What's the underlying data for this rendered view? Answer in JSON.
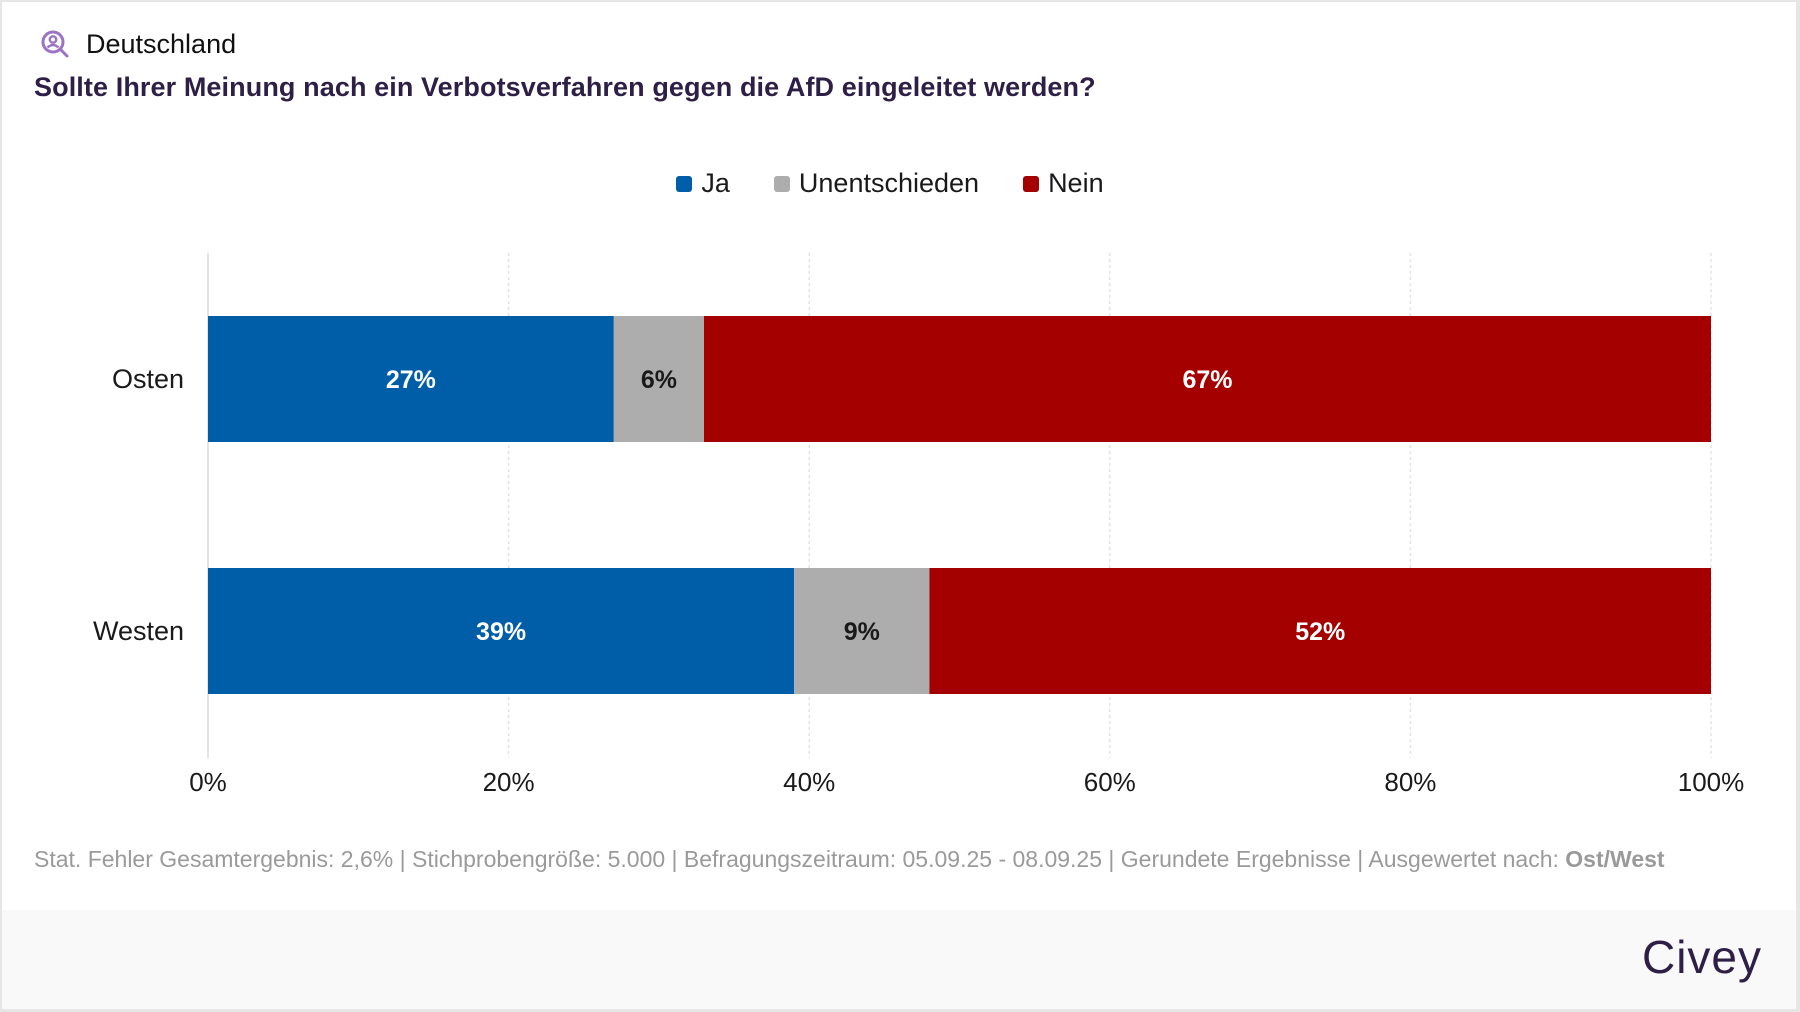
{
  "header": {
    "region_icon": "person-search-icon",
    "region_label": "Deutschland",
    "title": "Sollte Ihrer Meinung nach ein Verbotsverfahren gegen die AfD eingeleitet werden?"
  },
  "colors": {
    "ja": "#005ea8",
    "unentschieden": "#adadad",
    "nein": "#a50000",
    "title": "#2d1f45",
    "icon": "#9b72c4"
  },
  "chart_data": {
    "type": "bar",
    "orientation": "horizontal",
    "stacked": true,
    "title": "Sollte Ihrer Meinung nach ein Verbotsverfahren gegen die AfD eingeleitet werden?",
    "categories": [
      "Osten",
      "Westen"
    ],
    "series": [
      {
        "name": "Ja",
        "color": "#005ea8",
        "label_color": "#ffffff",
        "values": [
          27,
          39
        ]
      },
      {
        "name": "Unentschieden",
        "color": "#adadad",
        "label_color": "#1a1a1a",
        "values": [
          6,
          9
        ]
      },
      {
        "name": "Nein",
        "color": "#a50000",
        "label_color": "#ffffff",
        "values": [
          67,
          52
        ]
      }
    ],
    "xlim": [
      0,
      100
    ],
    "xticks": [
      0,
      20,
      40,
      60,
      80,
      100
    ],
    "xtick_labels": [
      "0%",
      "20%",
      "40%",
      "60%",
      "80%",
      "100%"
    ],
    "value_suffix": "%",
    "xlabel": "",
    "ylabel": "",
    "grid": "vertical dotted",
    "legend": "top-center"
  },
  "footnote": {
    "text": "Stat. Fehler Gesamtergebnis: 2,6% | Stichprobengröße: 5.000 | Befragungszeitraum: 05.09.25 - 08.09.25 | Gerundete Ergebnisse | Ausgewertet nach: ",
    "emphasis": "Ost/West"
  },
  "footer": {
    "brand": "Civey"
  }
}
